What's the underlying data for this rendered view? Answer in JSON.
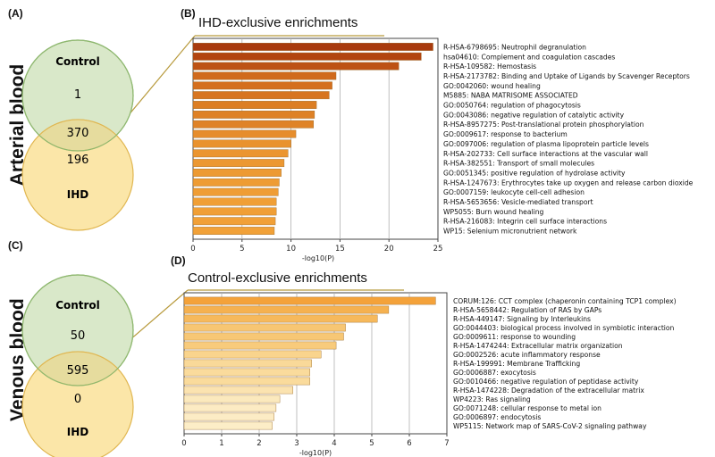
{
  "panels": {
    "a_label": "(A)",
    "b_label": "(B)",
    "c_label": "(C)",
    "d_label": "(D)"
  },
  "row_titles": {
    "arterial": "Arterial blood",
    "venous": "Venous blood"
  },
  "venn": [
    {
      "top_label": "Control",
      "bottom_label": "IHD",
      "top_only": "1",
      "overlap": "370",
      "bottom_only": "196"
    },
    {
      "top_label": "Control",
      "bottom_label": "IHD",
      "top_only": "50",
      "overlap": "595",
      "bottom_only": "0"
    }
  ],
  "colors": {
    "venn_top_fill": "#d9e8c9",
    "venn_top_stroke": "#8fb870",
    "venn_bottom_fill": "#fbe6a8",
    "venn_bottom_stroke": "#e0b650",
    "venn_overlap_fill": "#e6dc9e",
    "callout_line": "#b89a3c",
    "frame": "#444444",
    "grid": "#b0b0b0"
  },
  "chart_data": [
    {
      "type": "bar",
      "orientation": "horizontal",
      "title": "IHD-exclusive enrichments",
      "xlabel": "-log10(P)",
      "ylabel": "",
      "xlim": [
        0,
        25
      ],
      "xticks": [
        0,
        5,
        10,
        15,
        20,
        25
      ],
      "categories": [
        "R-HSA-6798695: Neutrophil degranulation",
        "hsa04610: Complement and coagulation cascades",
        "R-HSA-109582: Hemostasis",
        "R-HSA-2173782: Binding and Uptake of Ligands by Scavenger Receptors",
        "GO:0042060: wound healing",
        "M5885: NABA MATRISOME ASSOCIATED",
        "GO:0050764: regulation of phagocytosis",
        "GO:0043086: negative regulation of catalytic activity",
        "R-HSA-8957275: Post-translational protein phosphorylation",
        "GO:0009617: response to bacterium",
        "GO:0097006: regulation of plasma lipoprotein particle levels",
        "R-HSA-202733: Cell surface interactions at the vascular wall",
        "R-HSA-382551: Transport of small molecules",
        "GO:0051345: positive regulation of hydrolase activity",
        "R-HSA-1247673: Erythrocytes take up oxygen and release carbon dioxide",
        "GO:0007159: leukocyte cell-cell adhesion",
        "R-HSA-5653656: Vesicle-mediated transport",
        "WP5055: Burn wound healing",
        "R-HSA-216083: Integrin cell surface interactions",
        "WP15: Selenium micronutrient network"
      ],
      "values": [
        24.5,
        23.3,
        21.0,
        14.6,
        14.2,
        13.9,
        12.6,
        12.4,
        12.3,
        10.5,
        10.0,
        9.7,
        9.3,
        9.0,
        8.8,
        8.7,
        8.5,
        8.5,
        8.4,
        8.3
      ],
      "colors": [
        "#a83a0e",
        "#b24510",
        "#bd5214",
        "#d06a1c",
        "#d46f1e",
        "#d77520",
        "#dc7e24",
        "#de8126",
        "#df8327",
        "#e68d2c",
        "#e9922e",
        "#eb9530",
        "#ec9832",
        "#ed9a33",
        "#ee9c34",
        "#ef9d35",
        "#f09f36",
        "#f09f36",
        "#f1a037",
        "#f1a138"
      ]
    },
    {
      "type": "bar",
      "orientation": "horizontal",
      "title": "Control-exclusive enrichments",
      "xlabel": "-log10(P)",
      "ylabel": "",
      "xlim": [
        0,
        7
      ],
      "xticks": [
        0,
        1,
        2,
        3,
        4,
        5,
        6,
        7
      ],
      "categories": [
        "CORUM:126: CCT complex (chaperonin containing TCP1 complex)",
        "R-HSA-5658442: Regulation of RAS by GAPs",
        "R-HSA-449147: Signaling by Interleukins",
        "GO:0044403: biological process involved in symbiotic interaction",
        "GO:0009611: response to wounding",
        "R-HSA-1474244: Extracellular matrix organization",
        "GO:0002526: acute inflammatory response",
        "R-HSA-199991: Membrane Trafficking",
        "GO:0006887: exocytosis",
        "GO:0010466: negative regulation of peptidase activity",
        "R-HSA-1474228: Degradation of the extracellular matrix",
        "WP4223: Ras signaling",
        "GO:0071248: cellular response to metal ion",
        "GO:0006897: endocytosis",
        "WP5115: Network map of SARS-CoV-2 signaling pathway"
      ],
      "values": [
        6.7,
        5.45,
        5.15,
        4.3,
        4.25,
        4.05,
        3.65,
        3.4,
        3.35,
        3.35,
        2.9,
        2.55,
        2.45,
        2.4,
        2.35
      ],
      "colors": [
        "#f4a23a",
        "#f5b150",
        "#f6b95c",
        "#f7c673",
        "#f7c775",
        "#f8cb7c",
        "#f9d48d",
        "#f9d999",
        "#fadb9c",
        "#fadb9c",
        "#fbe3b0",
        "#fbe9bd",
        "#fcebc3",
        "#fcecc5",
        "#fcedc7"
      ]
    }
  ]
}
